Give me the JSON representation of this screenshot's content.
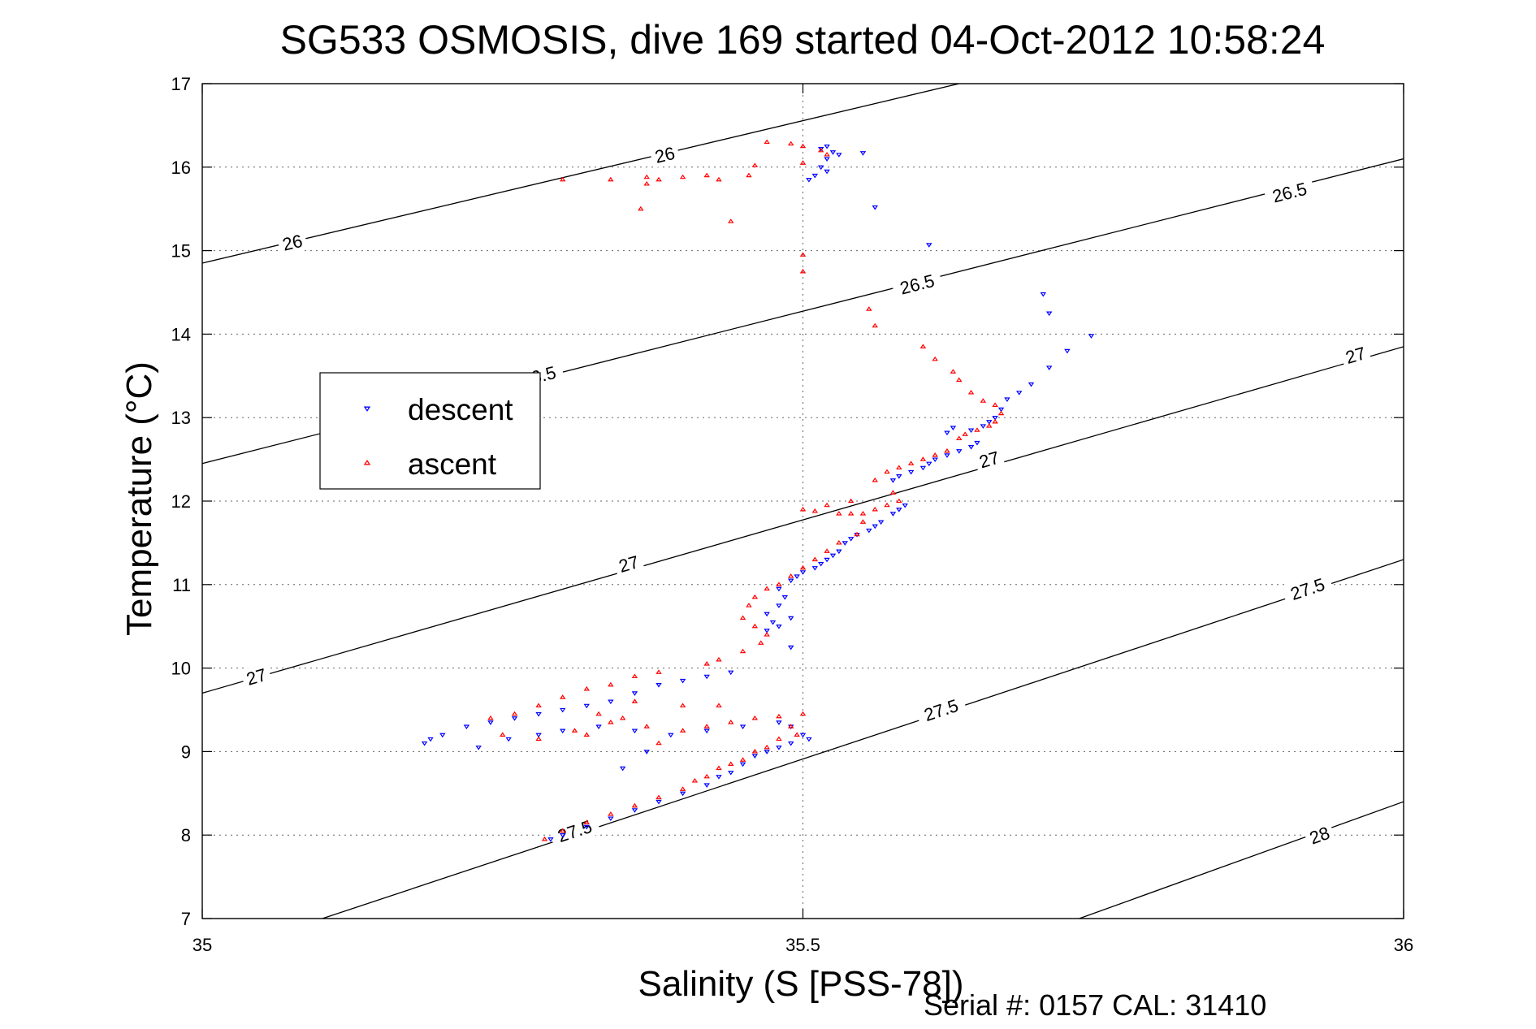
{
  "chart_data": {
    "type": "scatter",
    "title": "SG533 OSMOSIS, dive 169 started 04-Oct-2012 10:58:24",
    "xlabel": "Salinity (S [PSS-78])",
    "ylabel": "Temperature (°C)",
    "footer": "Serial #: 0157  CAL: 31410",
    "xlim": [
      35,
      36
    ],
    "ylim": [
      7,
      17
    ],
    "xticks": [
      35,
      35.5,
      36
    ],
    "xtick_labels": [
      "35",
      "35.5",
      "36"
    ],
    "yticks": [
      7,
      8,
      9,
      10,
      11,
      12,
      13,
      14,
      15,
      16,
      17
    ],
    "ytick_labels": [
      "7",
      "8",
      "9",
      "10",
      "11",
      "12",
      "13",
      "14",
      "15",
      "16",
      "17"
    ],
    "grid": true,
    "legend_position": "left",
    "density_contours": [
      {
        "label": "26",
        "points": [
          [
            35.0,
            14.85
          ],
          [
            35.63,
            17.0
          ]
        ],
        "labels_at": [
          [
            35.075,
            15.1
          ],
          [
            35.385,
            16.15
          ]
        ]
      },
      {
        "label": "26.5",
        "points": [
          [
            35.0,
            12.45
          ],
          [
            36.0,
            16.1
          ]
        ],
        "labels_at": [
          [
            35.28,
            13.5
          ],
          [
            35.595,
            14.6
          ],
          [
            35.905,
            15.7
          ]
        ]
      },
      {
        "label": "27",
        "points": [
          [
            35.0,
            9.7
          ],
          [
            36.0,
            13.85
          ]
        ],
        "labels_at": [
          [
            35.045,
            9.9
          ],
          [
            35.355,
            11.25
          ],
          [
            35.655,
            12.5
          ],
          [
            35.96,
            13.75
          ]
        ]
      },
      {
        "label": "27.5",
        "points": [
          [
            35.1,
            7.0
          ],
          [
            36.0,
            11.3
          ]
        ],
        "labels_at": [
          [
            35.31,
            8.05
          ],
          [
            35.615,
            9.5
          ],
          [
            35.92,
            10.95
          ]
        ]
      },
      {
        "label": "28",
        "points": [
          [
            35.73,
            7.0
          ],
          [
            36.0,
            8.4
          ]
        ],
        "labels_at": [
          [
            35.93,
            8.0
          ]
        ]
      }
    ],
    "series": [
      {
        "name": "descent",
        "marker": "triangle-down",
        "color": "#0000ff",
        "points": [
          [
            35.52,
            16.25
          ],
          [
            35.515,
            16.22
          ],
          [
            35.525,
            16.18
          ],
          [
            35.53,
            16.15
          ],
          [
            35.52,
            16.1
          ],
          [
            35.515,
            16.0
          ],
          [
            35.52,
            15.95
          ],
          [
            35.51,
            15.9
          ],
          [
            35.505,
            15.85
          ],
          [
            35.55,
            16.17
          ],
          [
            35.56,
            15.52
          ],
          [
            35.605,
            15.07
          ],
          [
            35.7,
            14.48
          ],
          [
            35.705,
            14.25
          ],
          [
            35.74,
            13.98
          ],
          [
            35.72,
            13.8
          ],
          [
            35.705,
            13.6
          ],
          [
            35.69,
            13.4
          ],
          [
            35.68,
            13.3
          ],
          [
            35.67,
            13.22
          ],
          [
            35.665,
            13.1
          ],
          [
            35.66,
            13.0
          ],
          [
            35.655,
            12.95
          ],
          [
            35.65,
            12.9
          ],
          [
            35.64,
            12.85
          ],
          [
            35.625,
            12.88
          ],
          [
            35.62,
            12.82
          ],
          [
            35.645,
            12.7
          ],
          [
            35.64,
            12.65
          ],
          [
            35.63,
            12.6
          ],
          [
            35.62,
            12.55
          ],
          [
            35.61,
            12.5
          ],
          [
            35.605,
            12.45
          ],
          [
            35.6,
            12.4
          ],
          [
            35.59,
            12.35
          ],
          [
            35.58,
            12.3
          ],
          [
            35.575,
            12.25
          ],
          [
            35.585,
            11.95
          ],
          [
            35.58,
            11.9
          ],
          [
            35.575,
            11.85
          ],
          [
            35.565,
            11.75
          ],
          [
            35.56,
            11.7
          ],
          [
            35.555,
            11.65
          ],
          [
            35.545,
            11.6
          ],
          [
            35.54,
            11.55
          ],
          [
            35.535,
            11.5
          ],
          [
            35.53,
            11.4
          ],
          [
            35.525,
            11.35
          ],
          [
            35.52,
            11.3
          ],
          [
            35.515,
            11.25
          ],
          [
            35.51,
            11.2
          ],
          [
            35.5,
            11.15
          ],
          [
            35.495,
            11.1
          ],
          [
            35.49,
            11.05
          ],
          [
            35.48,
            10.95
          ],
          [
            35.485,
            10.85
          ],
          [
            35.48,
            10.75
          ],
          [
            35.47,
            10.65
          ],
          [
            35.475,
            10.55
          ],
          [
            35.48,
            10.5
          ],
          [
            35.47,
            10.45
          ],
          [
            35.49,
            10.6
          ],
          [
            35.49,
            10.25
          ],
          [
            35.44,
            9.95
          ],
          [
            35.42,
            9.9
          ],
          [
            35.4,
            9.85
          ],
          [
            35.38,
            9.8
          ],
          [
            35.36,
            9.7
          ],
          [
            35.34,
            9.6
          ],
          [
            35.32,
            9.55
          ],
          [
            35.3,
            9.5
          ],
          [
            35.28,
            9.45
          ],
          [
            35.26,
            9.4
          ],
          [
            35.24,
            9.35
          ],
          [
            35.22,
            9.3
          ],
          [
            35.2,
            9.2
          ],
          [
            35.19,
            9.15
          ],
          [
            35.185,
            9.1
          ],
          [
            35.23,
            9.05
          ],
          [
            35.255,
            9.15
          ],
          [
            35.28,
            9.2
          ],
          [
            35.3,
            9.25
          ],
          [
            35.33,
            9.3
          ],
          [
            35.36,
            9.25
          ],
          [
            35.39,
            9.2
          ],
          [
            35.42,
            9.25
          ],
          [
            35.45,
            9.3
          ],
          [
            35.48,
            9.35
          ],
          [
            35.49,
            9.3
          ],
          [
            35.5,
            9.2
          ],
          [
            35.505,
            9.15
          ],
          [
            35.49,
            9.1
          ],
          [
            35.48,
            9.05
          ],
          [
            35.47,
            9.0
          ],
          [
            35.46,
            8.95
          ],
          [
            35.45,
            8.85
          ],
          [
            35.44,
            8.75
          ],
          [
            35.43,
            8.7
          ],
          [
            35.42,
            8.6
          ],
          [
            35.4,
            8.5
          ],
          [
            35.38,
            8.4
          ],
          [
            35.36,
            8.3
          ],
          [
            35.34,
            8.2
          ],
          [
            35.32,
            8.1
          ],
          [
            35.3,
            8.0
          ],
          [
            35.29,
            7.95
          ],
          [
            35.35,
            8.8
          ],
          [
            35.37,
            9.0
          ]
        ]
      },
      {
        "name": "ascent",
        "marker": "triangle-up",
        "color": "#ff0000",
        "points": [
          [
            35.47,
            16.3
          ],
          [
            35.49,
            16.28
          ],
          [
            35.5,
            16.25
          ],
          [
            35.515,
            16.2
          ],
          [
            35.52,
            16.15
          ],
          [
            35.5,
            16.05
          ],
          [
            35.46,
            16.02
          ],
          [
            35.42,
            15.9
          ],
          [
            35.38,
            15.85
          ],
          [
            35.34,
            15.85
          ],
          [
            35.3,
            15.85
          ],
          [
            35.37,
            15.88
          ],
          [
            35.43,
            15.85
          ],
          [
            35.455,
            15.9
          ],
          [
            35.4,
            15.88
          ],
          [
            35.365,
            15.5
          ],
          [
            35.37,
            15.8
          ],
          [
            35.44,
            15.35
          ],
          [
            35.5,
            14.95
          ],
          [
            35.5,
            14.75
          ],
          [
            35.555,
            14.3
          ],
          [
            35.56,
            14.1
          ],
          [
            35.6,
            13.85
          ],
          [
            35.61,
            13.7
          ],
          [
            35.625,
            13.55
          ],
          [
            35.63,
            13.45
          ],
          [
            35.64,
            13.3
          ],
          [
            35.65,
            13.2
          ],
          [
            35.66,
            13.15
          ],
          [
            35.665,
            13.05
          ],
          [
            35.66,
            12.95
          ],
          [
            35.655,
            12.9
          ],
          [
            35.645,
            12.85
          ],
          [
            35.635,
            12.8
          ],
          [
            35.63,
            12.75
          ],
          [
            35.62,
            12.6
          ],
          [
            35.61,
            12.55
          ],
          [
            35.6,
            12.5
          ],
          [
            35.59,
            12.45
          ],
          [
            35.58,
            12.4
          ],
          [
            35.57,
            12.35
          ],
          [
            35.56,
            12.25
          ],
          [
            35.575,
            12.1
          ],
          [
            35.58,
            12.0
          ],
          [
            35.57,
            11.95
          ],
          [
            35.56,
            11.9
          ],
          [
            35.55,
            11.85
          ],
          [
            35.54,
            11.85
          ],
          [
            35.53,
            11.85
          ],
          [
            35.51,
            11.88
          ],
          [
            35.5,
            11.9
          ],
          [
            35.52,
            11.95
          ],
          [
            35.54,
            12.0
          ],
          [
            35.55,
            11.75
          ],
          [
            35.545,
            11.6
          ],
          [
            35.53,
            11.5
          ],
          [
            35.52,
            11.4
          ],
          [
            35.51,
            11.3
          ],
          [
            35.5,
            11.2
          ],
          [
            35.49,
            11.1
          ],
          [
            35.48,
            11.0
          ],
          [
            35.47,
            10.95
          ],
          [
            35.46,
            10.85
          ],
          [
            35.455,
            10.75
          ],
          [
            35.45,
            10.6
          ],
          [
            35.46,
            10.5
          ],
          [
            35.47,
            10.4
          ],
          [
            35.465,
            10.3
          ],
          [
            35.45,
            10.2
          ],
          [
            35.43,
            10.1
          ],
          [
            35.42,
            10.05
          ],
          [
            35.38,
            9.95
          ],
          [
            35.36,
            9.9
          ],
          [
            35.34,
            9.8
          ],
          [
            35.32,
            9.75
          ],
          [
            35.3,
            9.65
          ],
          [
            35.28,
            9.55
          ],
          [
            35.26,
            9.45
          ],
          [
            35.24,
            9.4
          ],
          [
            35.25,
            9.2
          ],
          [
            35.28,
            9.15
          ],
          [
            35.31,
            9.25
          ],
          [
            35.34,
            9.35
          ],
          [
            35.37,
            9.3
          ],
          [
            35.4,
            9.25
          ],
          [
            35.42,
            9.3
          ],
          [
            35.44,
            9.35
          ],
          [
            35.46,
            9.4
          ],
          [
            35.48,
            9.42
          ],
          [
            35.5,
            9.45
          ],
          [
            35.49,
            9.3
          ],
          [
            35.495,
            9.2
          ],
          [
            35.48,
            9.15
          ],
          [
            35.47,
            9.05
          ],
          [
            35.46,
            9.0
          ],
          [
            35.45,
            8.9
          ],
          [
            35.44,
            8.85
          ],
          [
            35.43,
            8.8
          ],
          [
            35.42,
            8.7
          ],
          [
            35.41,
            8.65
          ],
          [
            35.4,
            8.55
          ],
          [
            35.38,
            8.45
          ],
          [
            35.36,
            8.35
          ],
          [
            35.34,
            8.25
          ],
          [
            35.32,
            8.15
          ],
          [
            35.3,
            8.05
          ],
          [
            35.285,
            7.95
          ],
          [
            35.33,
            9.45
          ],
          [
            35.36,
            9.6
          ],
          [
            35.4,
            9.55
          ],
          [
            35.43,
            9.55
          ],
          [
            35.35,
            9.4
          ],
          [
            35.32,
            9.2
          ],
          [
            35.38,
            9.1
          ]
        ]
      }
    ]
  }
}
